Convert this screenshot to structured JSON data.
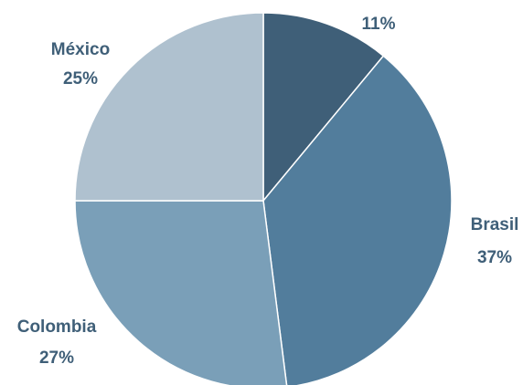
{
  "chart_data": {
    "type": "pie",
    "slices": [
      {
        "name": "",
        "value": 11,
        "label": "11%",
        "color": "#3f5f78"
      },
      {
        "name": "Brasil",
        "value": 37,
        "label": "37%",
        "color": "#527d9c"
      },
      {
        "name": "Colombia",
        "value": 27,
        "label": "27%",
        "color": "#7a9fb8"
      },
      {
        "name": "México",
        "value": 25,
        "label": "25%",
        "color": "#afc1cf"
      }
    ],
    "label_color": "#3f5f78",
    "start_angle_deg": 0,
    "direction": "clockwise",
    "legend": "none"
  }
}
